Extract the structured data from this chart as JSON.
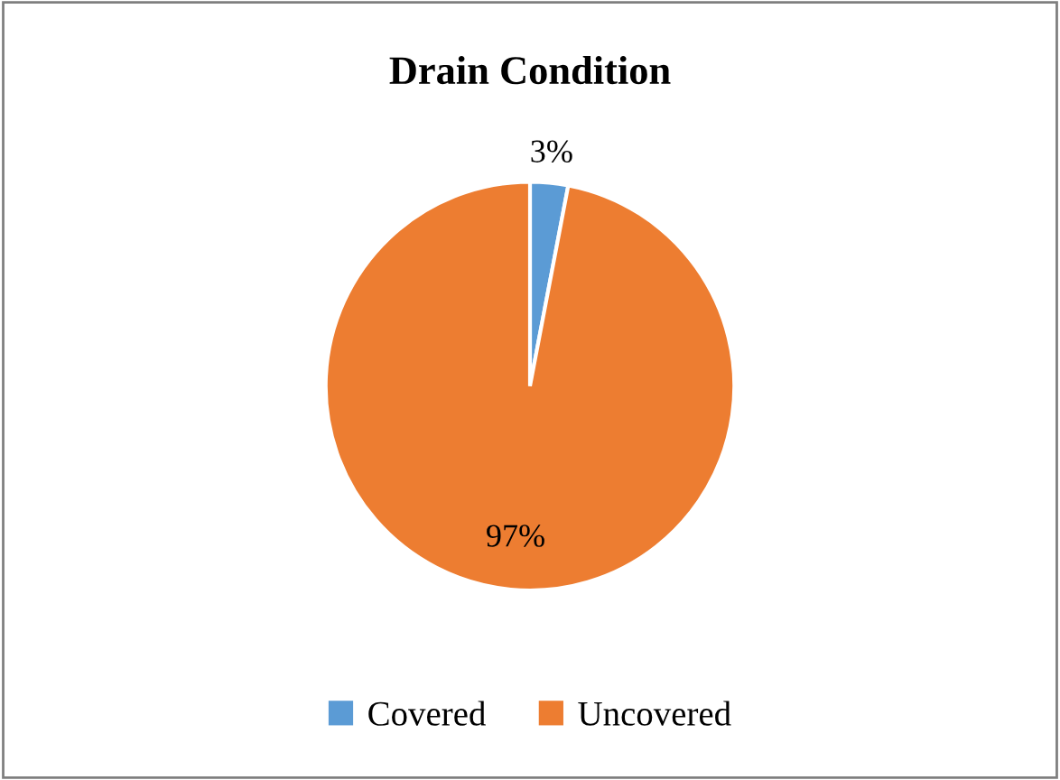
{
  "chart_data": {
    "type": "pie",
    "title": "Drain Condition",
    "categories": [
      "Covered",
      "Uncovered"
    ],
    "values": [
      3,
      97
    ],
    "colors": [
      "#5b9bd5",
      "#ed7d31"
    ],
    "value_labels": [
      "3%",
      "97%"
    ],
    "legend": "bottom"
  }
}
